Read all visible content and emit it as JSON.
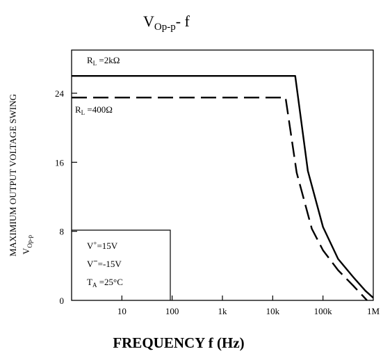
{
  "title": {
    "main": "V",
    "sub": "Op-p",
    "suffix": "- f"
  },
  "chart_data": {
    "type": "line",
    "title": "VOp-p- f",
    "xlabel": "FREQUENCY f (Hz)",
    "ylabel": "MAXIMIUM OUTPUT VOLTAGE SWING",
    "ylabel_symbol": {
      "main": "V",
      "sub": "Op-p"
    },
    "x_scale": "log",
    "xlim": [
      1,
      1000000
    ],
    "ylim": [
      0,
      29
    ],
    "x_ticks": [
      {
        "value": 10,
        "label": "10"
      },
      {
        "value": 100,
        "label": "100"
      },
      {
        "value": 1000,
        "label": "1k"
      },
      {
        "value": 10000,
        "label": "10k"
      },
      {
        "value": 100000,
        "label": "100k"
      },
      {
        "value": 1000000,
        "label": "1M"
      }
    ],
    "y_ticks": [
      {
        "value": 0,
        "label": "0"
      },
      {
        "value": 8,
        "label": "8"
      },
      {
        "value": 16,
        "label": "16"
      },
      {
        "value": 24,
        "label": "24"
      }
    ],
    "grid": false,
    "series": [
      {
        "name": "RL=2kΩ",
        "label": {
          "main": "R",
          "sub": "L",
          "rest": " =2kΩ"
        },
        "style": "solid",
        "x": [
          1,
          10,
          100,
          1000,
          10000,
          28000,
          50000,
          100000,
          200000,
          400000,
          700000,
          1000000
        ],
        "values": [
          26,
          26,
          26,
          26,
          26,
          26,
          15,
          8.5,
          4.8,
          2.7,
          1.1,
          0.3
        ]
      },
      {
        "name": "RL=400Ω",
        "label": {
          "main": "R",
          "sub": "L",
          "rest": " =400Ω"
        },
        "style": "dashed",
        "x": [
          1,
          10,
          100,
          1000,
          10000,
          18000,
          30000,
          60000,
          100000,
          200000,
          400000,
          750000
        ],
        "values": [
          23.5,
          23.5,
          23.5,
          23.5,
          23.5,
          23.5,
          14.8,
          8.3,
          5.8,
          3.5,
          1.7,
          0
        ]
      }
    ],
    "conditions": {
      "vplus": {
        "main": "V",
        "sup": "+",
        "rest": "=15V"
      },
      "vminus": {
        "main": "V",
        "sup": "−",
        "rest": "=-15V"
      },
      "ta": {
        "main": "T",
        "sub": "A",
        "rest": " =25°C"
      }
    }
  }
}
